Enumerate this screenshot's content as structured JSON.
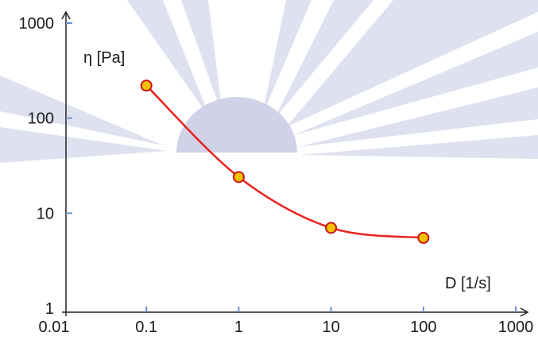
{
  "chart_data": {
    "type": "line",
    "xscale": "log",
    "yscale": "log",
    "xlabel": "D [1/s]",
    "ylabel": "η [Pa]",
    "xlim": [
      0.01,
      1000
    ],
    "ylim": [
      1,
      1000
    ],
    "x_ticks": [
      "0.01",
      "0.1",
      "1",
      "10",
      "100",
      "1000"
    ],
    "y_ticks": [
      "1",
      "10",
      "100",
      "1000"
    ],
    "grid": false,
    "series": [
      {
        "x": [
          0.1,
          1,
          10,
          100
        ],
        "y": [
          220,
          24,
          7,
          5.5
        ]
      }
    ]
  },
  "colors": {
    "line": "#e8231e",
    "marker_fill": "#f5c000",
    "marker_edge": "#c4161c",
    "axis": "#222222",
    "background_motif": "#d5d8ec"
  }
}
